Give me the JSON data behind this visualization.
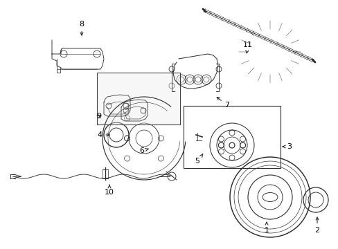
{
  "bg_color": "#ffffff",
  "fig_width": 4.89,
  "fig_height": 3.6,
  "dpi": 100,
  "line_color": "#2a2a2a",
  "text_color": "#000000",
  "lw": 0.8
}
